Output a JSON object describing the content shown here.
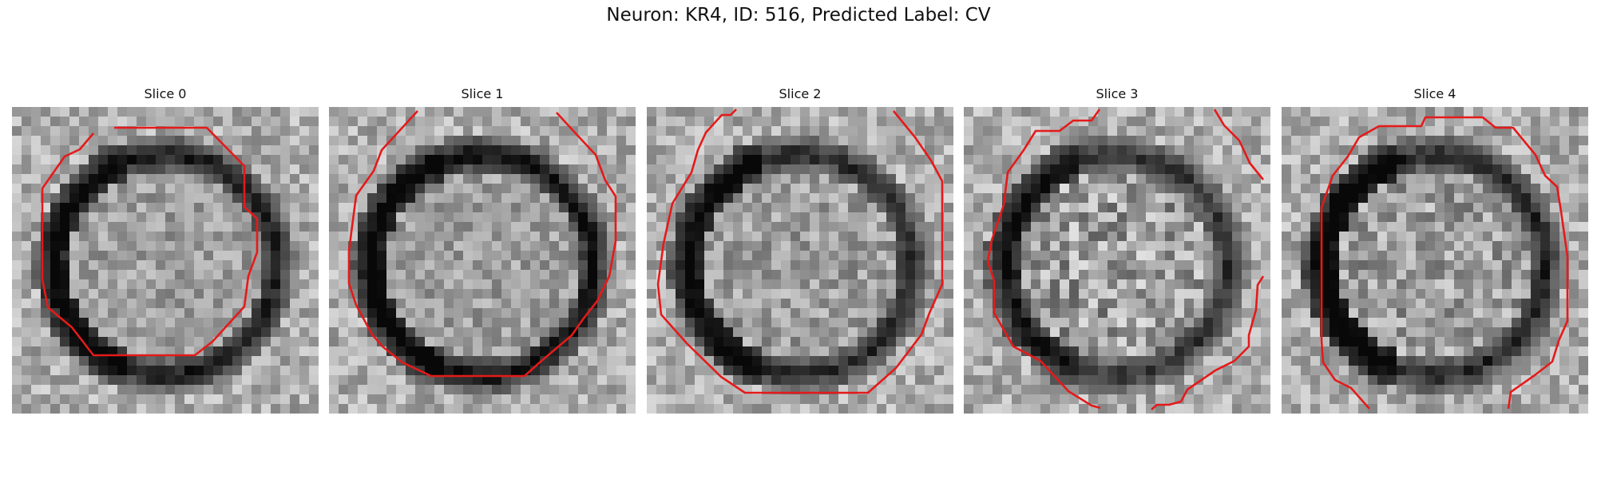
{
  "figure": {
    "title": "Neuron: KR4, ID: 516, Predicted Label: CV"
  },
  "panels": [
    {
      "title": "Slice 0",
      "seed": 11,
      "dark_ring": 0.55,
      "dark_left": 0.35,
      "noise": 0.16
    },
    {
      "title": "Slice 1",
      "seed": 23,
      "dark_ring": 0.6,
      "dark_left": 0.3,
      "noise": 0.16
    },
    {
      "title": "Slice 2",
      "seed": 37,
      "dark_ring": 0.5,
      "dark_left": 0.45,
      "noise": 0.18
    },
    {
      "title": "Slice 3",
      "seed": 41,
      "dark_ring": 0.45,
      "dark_left": 0.4,
      "noise": 0.26
    },
    {
      "title": "Slice 4",
      "seed": 59,
      "dark_ring": 0.5,
      "dark_left": 0.55,
      "noise": 0.22
    }
  ],
  "contour_color": "#e51a1a",
  "colormap": "gray"
}
